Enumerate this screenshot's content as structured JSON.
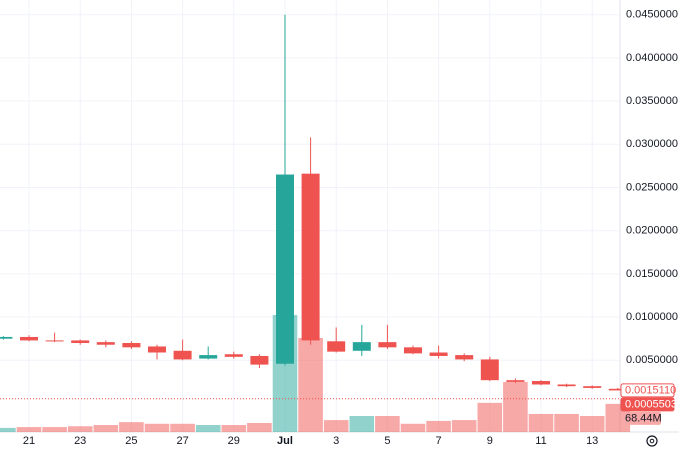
{
  "chart_data": {
    "type": "candlestick",
    "categories": [
      null,
      "21",
      null,
      "23",
      null,
      "25",
      null,
      "27",
      null,
      "29",
      null,
      "Jul",
      null,
      "3",
      null,
      "5",
      null,
      "7",
      null,
      "9",
      null,
      "11",
      null,
      "13",
      null
    ],
    "open": [
      0.0075,
      0.0077,
      0.0073,
      0.0073,
      0.0071,
      0.007,
      0.0066,
      0.0061,
      0.0052,
      0.0057,
      0.0055,
      0.0046,
      0.0266,
      0.0072,
      0.0061,
      0.0071,
      0.0065,
      0.0059,
      0.0056,
      0.0051,
      0.0027,
      0.0026,
      0.0022,
      0.002,
      0.0017
    ],
    "high": [
      0.0078,
      0.0079,
      0.0082,
      0.0074,
      0.0073,
      0.0072,
      0.0068,
      0.0074,
      0.0066,
      0.006,
      0.0057,
      0.045,
      0.0308,
      0.0088,
      0.0091,
      0.0091,
      0.0067,
      0.0067,
      0.0058,
      0.0054,
      0.0029,
      0.0027,
      0.0023,
      0.0021,
      0.0018
    ],
    "low": [
      0.0074,
      0.0072,
      0.0071,
      0.0068,
      0.0065,
      0.0063,
      0.0051,
      0.005,
      0.0051,
      0.0052,
      0.0041,
      0.0044,
      0.0068,
      0.0059,
      0.0055,
      0.0063,
      0.0057,
      0.0052,
      0.0049,
      0.0026,
      0.0024,
      0.0021,
      0.0019,
      0.0017,
      0.0015
    ],
    "close": [
      0.0077,
      0.0073,
      0.0072,
      0.007,
      0.0068,
      0.0065,
      0.0059,
      0.0051,
      0.0056,
      0.0054,
      0.0045,
      0.0265,
      0.0073,
      0.006,
      0.0071,
      0.0065,
      0.0058,
      0.0055,
      0.0051,
      0.0027,
      0.0025,
      0.0022,
      0.002,
      0.0018,
      0.001511
    ],
    "volume": [
      10,
      12,
      12,
      14,
      17,
      24,
      20,
      20,
      17,
      17,
      22,
      285,
      229,
      29,
      39,
      39,
      20,
      27,
      29,
      71,
      122,
      44,
      44,
      39,
      68.44
    ],
    "up_color": "#26a69a",
    "down_color": "#ef5350",
    "ylim": [
      -0.0033,
      0.0467
    ],
    "yticks": [
      {
        "value": 0.005,
        "label": "0.0050000"
      },
      {
        "value": 0.01,
        "label": "0.0100000"
      },
      {
        "value": 0.015,
        "label": "0.0150000"
      },
      {
        "value": 0.02,
        "label": "0.0200000"
      },
      {
        "value": 0.025,
        "label": "0.0250000"
      },
      {
        "value": 0.03,
        "label": "0.0300000"
      },
      {
        "value": 0.035,
        "label": "0.0350000"
      },
      {
        "value": 0.04,
        "label": "0.0400000"
      },
      {
        "value": 0.045,
        "label": "0.0450000"
      }
    ],
    "grid": true,
    "price_tags": [
      {
        "value": 0.001511,
        "label": "0.0015110"
      },
      {
        "value": 0.0005503,
        "label": "0.0005503"
      }
    ],
    "volume_tag": {
      "value": 68.44,
      "label": "68.44M"
    }
  }
}
